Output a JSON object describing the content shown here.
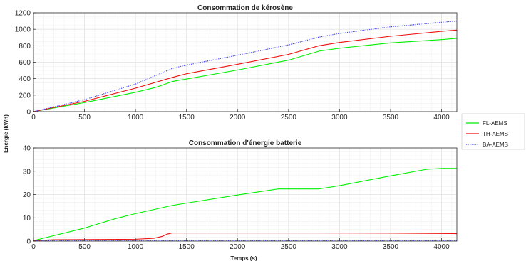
{
  "colors": {
    "fl": "#00ee00",
    "th": "#ee1111",
    "ba": "#4444ff",
    "grid": "#e3e3e3",
    "axis": "#262626"
  },
  "shared": {
    "ylabel": "Energie (kWh)",
    "xlabel": "Temps (s)"
  },
  "legend": {
    "placement": "right",
    "items": [
      {
        "label": "FL-AEMS",
        "color": "#00ee00",
        "dash": "none"
      },
      {
        "label": "TH-AEMS",
        "color": "#ee1111",
        "dash": "none"
      },
      {
        "label": "BA-AEMS",
        "color": "#4444ff",
        "dash": "dotted"
      }
    ]
  },
  "chart_data": [
    {
      "type": "line",
      "title": "Consommation de kérosène",
      "xlim": [
        0,
        4150
      ],
      "ylim": [
        0,
        1200
      ],
      "xticks": [
        0,
        500,
        1000,
        1500,
        2000,
        2500,
        3000,
        3500,
        4000
      ],
      "yticks": [
        0,
        200,
        400,
        600,
        800,
        1000,
        1200
      ],
      "grid": true,
      "series": [
        {
          "name": "FL-AEMS",
          "color": "#00ee00",
          "x": [
            0,
            500,
            1000,
            1200,
            1360,
            1400,
            2000,
            2500,
            2800,
            3000,
            3500,
            4000,
            4150
          ],
          "y": [
            0,
            110,
            235,
            295,
            365,
            375,
            505,
            625,
            735,
            770,
            835,
            875,
            890
          ]
        },
        {
          "name": "TH-AEMS",
          "color": "#ee1111",
          "x": [
            0,
            500,
            1000,
            1360,
            1500,
            2000,
            2500,
            2800,
            3000,
            3500,
            4000,
            4150
          ],
          "y": [
            0,
            125,
            285,
            415,
            460,
            575,
            695,
            800,
            840,
            915,
            975,
            990
          ]
        },
        {
          "name": "BA-AEMS",
          "color": "#4444ff",
          "dash": "dotted",
          "x": [
            0,
            500,
            1000,
            1360,
            1500,
            2000,
            2500,
            2800,
            3000,
            3500,
            4000,
            4150
          ],
          "y": [
            0,
            145,
            335,
            525,
            565,
            685,
            810,
            905,
            950,
            1030,
            1085,
            1100
          ]
        }
      ]
    },
    {
      "type": "line",
      "title": "Consommation d'énergie batterie",
      "xlim": [
        0,
        4150
      ],
      "ylim": [
        0,
        40
      ],
      "xticks": [
        0,
        500,
        1000,
        1500,
        2000,
        2500,
        3000,
        3500,
        4000
      ],
      "yticks": [
        0,
        10,
        20,
        30,
        40
      ],
      "grid": true,
      "series": [
        {
          "name": "FL-AEMS",
          "color": "#00ee00",
          "x": [
            0,
            500,
            800,
            1000,
            1360,
            1500,
            2000,
            2400,
            2800,
            3000,
            3500,
            3850,
            4000,
            4150
          ],
          "y": [
            0.2,
            5.6,
            9.6,
            11.8,
            15.3,
            16.3,
            19.8,
            22.4,
            22.4,
            23.8,
            28.0,
            30.8,
            31.2,
            31.2
          ]
        },
        {
          "name": "TH-AEMS",
          "color": "#ee1111",
          "x": [
            0,
            200,
            1000,
            1180,
            1260,
            1310,
            1360,
            2000,
            2800,
            3500,
            4150
          ],
          "y": [
            0.2,
            0.6,
            0.8,
            1.2,
            2.0,
            3.0,
            3.5,
            3.5,
            3.5,
            3.4,
            3.2
          ]
        },
        {
          "name": "BA-AEMS",
          "color": "#4444ff",
          "dash": "dotted",
          "x": [
            0,
            500,
            1000,
            1500,
            2000,
            2500,
            3000,
            3500,
            4150
          ],
          "y": [
            0.1,
            0.3,
            0.35,
            0.35,
            0.3,
            0.3,
            0.3,
            0.3,
            0.3
          ]
        }
      ]
    }
  ]
}
